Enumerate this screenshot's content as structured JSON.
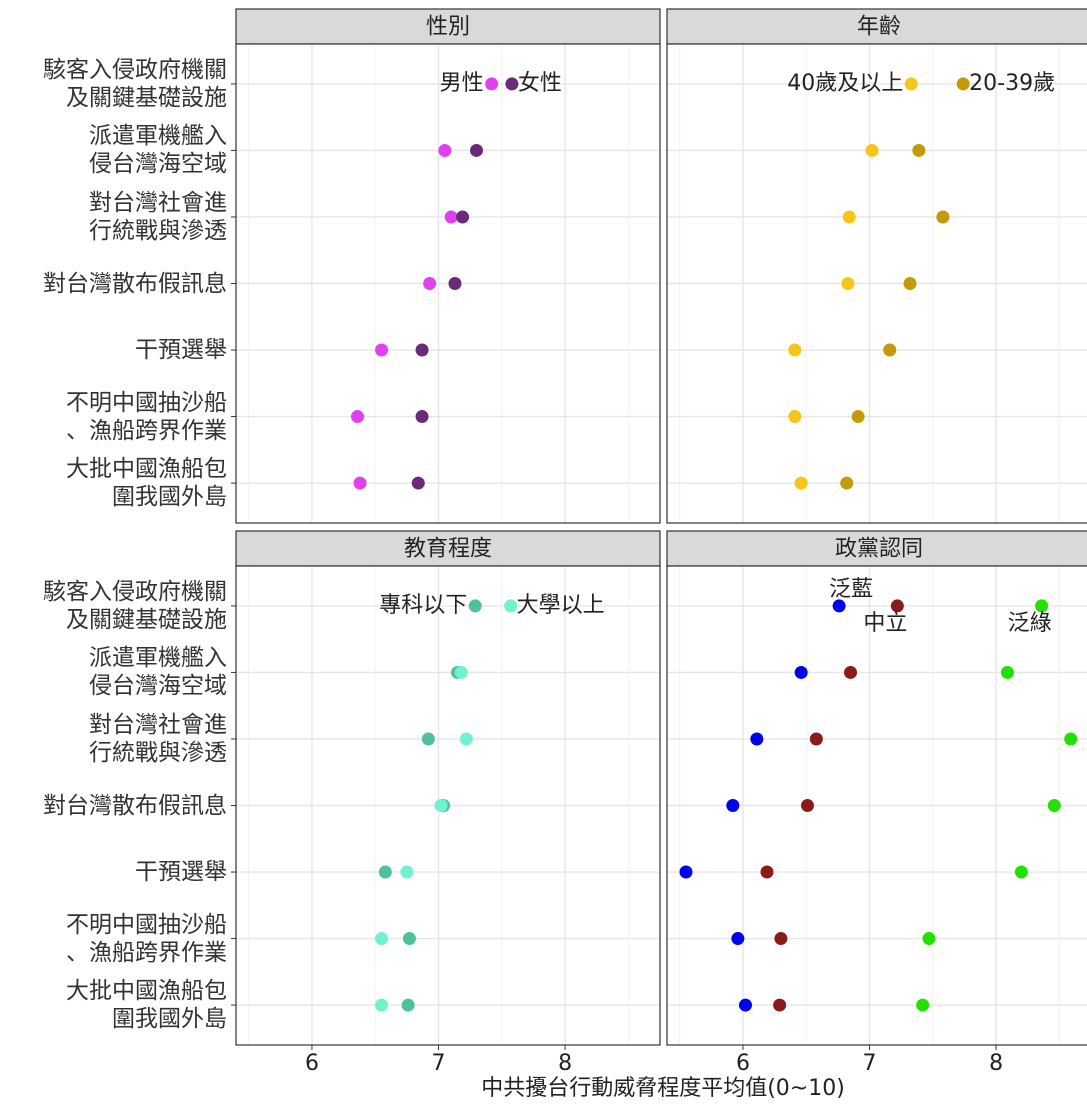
{
  "chart_data": {
    "type": "dot",
    "xlabel": "中共擾台行動威脅程度平均值(0~10)",
    "categories": [
      "駭客入侵政府機關\n及關鍵基礎設施",
      "派遣軍機艦入\n侵台灣海空域",
      "對台灣社會進\n行統戰與滲透",
      "對台灣散布假訊息",
      "干預選舉",
      "不明中國抽沙船\n、漁船跨界作業",
      "大批中國漁船包\n圍我國外島"
    ],
    "xlim": [
      5.4,
      8.75
    ],
    "xticks": [
      6,
      7,
      8
    ],
    "grid": true,
    "panels": [
      {
        "title": "性別",
        "series": [
          {
            "name": "男性",
            "color": "#e040f0",
            "label_pos": "left",
            "values": [
              7.42,
              7.05,
              7.1,
              6.93,
              6.55,
              6.36,
              6.38
            ]
          },
          {
            "name": "女性",
            "color": "#6a2a7a",
            "label_pos": "right",
            "values": [
              7.58,
              7.3,
              7.19,
              7.13,
              6.87,
              6.87,
              6.84
            ]
          }
        ]
      },
      {
        "title": "年齡",
        "series": [
          {
            "name": "40歲及以上",
            "color": "#f5c518",
            "label_pos": "left",
            "values": [
              7.33,
              7.02,
              6.84,
              6.83,
              6.41,
              6.41,
              6.46
            ]
          },
          {
            "name": "20-39歲",
            "color": "#c49a06",
            "label_pos": "right",
            "values": [
              7.74,
              7.39,
              7.58,
              7.32,
              7.16,
              6.91,
              6.82
            ]
          }
        ]
      },
      {
        "title": "教育程度",
        "series": [
          {
            "name": "專科以下",
            "color": "#4fc19a",
            "label_pos": "left",
            "values": [
              7.29,
              7.15,
              6.92,
              7.04,
              6.58,
              6.77,
              6.76
            ]
          },
          {
            "name": "大學以上",
            "color": "#70f2d0",
            "label_pos": "right",
            "values": [
              7.57,
              7.18,
              7.22,
              7.02,
              6.75,
              6.55,
              6.55
            ]
          }
        ]
      },
      {
        "title": "政黨認同",
        "series": [
          {
            "name": "泛藍",
            "color": "#0000ee",
            "label_pos": "above",
            "values": [
              6.76,
              6.46,
              6.11,
              5.92,
              5.55,
              5.96,
              6.02
            ]
          },
          {
            "name": "中立",
            "color": "#8b1a1a",
            "label_pos": "below",
            "values": [
              7.22,
              6.85,
              6.58,
              6.51,
              6.19,
              6.3,
              6.29
            ]
          },
          {
            "name": "泛綠",
            "color": "#22e000",
            "label_pos": "below-left",
            "values": [
              8.36,
              8.09,
              8.59,
              8.46,
              8.2,
              7.47,
              7.42
            ]
          }
        ]
      }
    ]
  }
}
